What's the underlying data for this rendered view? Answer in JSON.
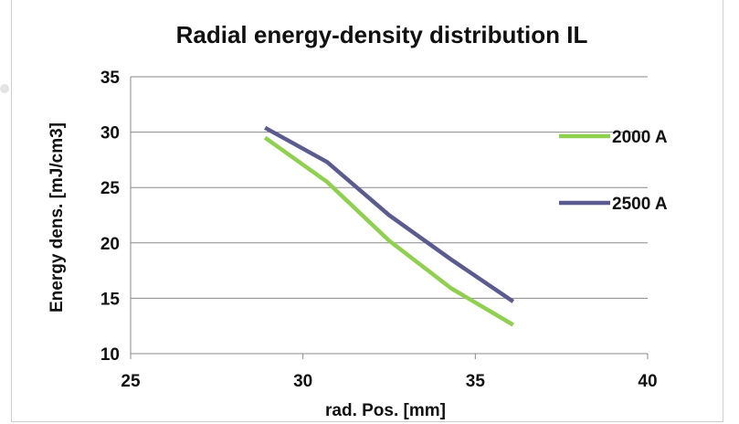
{
  "chart_data": {
    "type": "line",
    "title": "Radial energy-density distribution IL",
    "xlabel": "rad. Pos. [mm]",
    "ylabel": "Energy dens. [mJ/cm3]",
    "xlim": [
      25,
      40
    ],
    "ylim": [
      10,
      35
    ],
    "x_ticks": [
      "25",
      "30",
      "35",
      "40"
    ],
    "y_ticks": [
      "10",
      "15",
      "20",
      "25",
      "30",
      "35"
    ],
    "grid": "horizontal",
    "legend_position": "right",
    "series": [
      {
        "name": "2000 A",
        "color": "#8fd14f",
        "x": [
          28.9,
          30.7,
          32.5,
          34.3,
          36.1
        ],
        "y": [
          29.5,
          25.5,
          20.2,
          15.9,
          12.6
        ]
      },
      {
        "name": "2500 A",
        "color": "#5b5b8f",
        "x": [
          28.9,
          30.7,
          32.5,
          34.3,
          36.1
        ],
        "y": [
          30.4,
          27.3,
          22.5,
          18.5,
          14.7
        ]
      }
    ]
  }
}
